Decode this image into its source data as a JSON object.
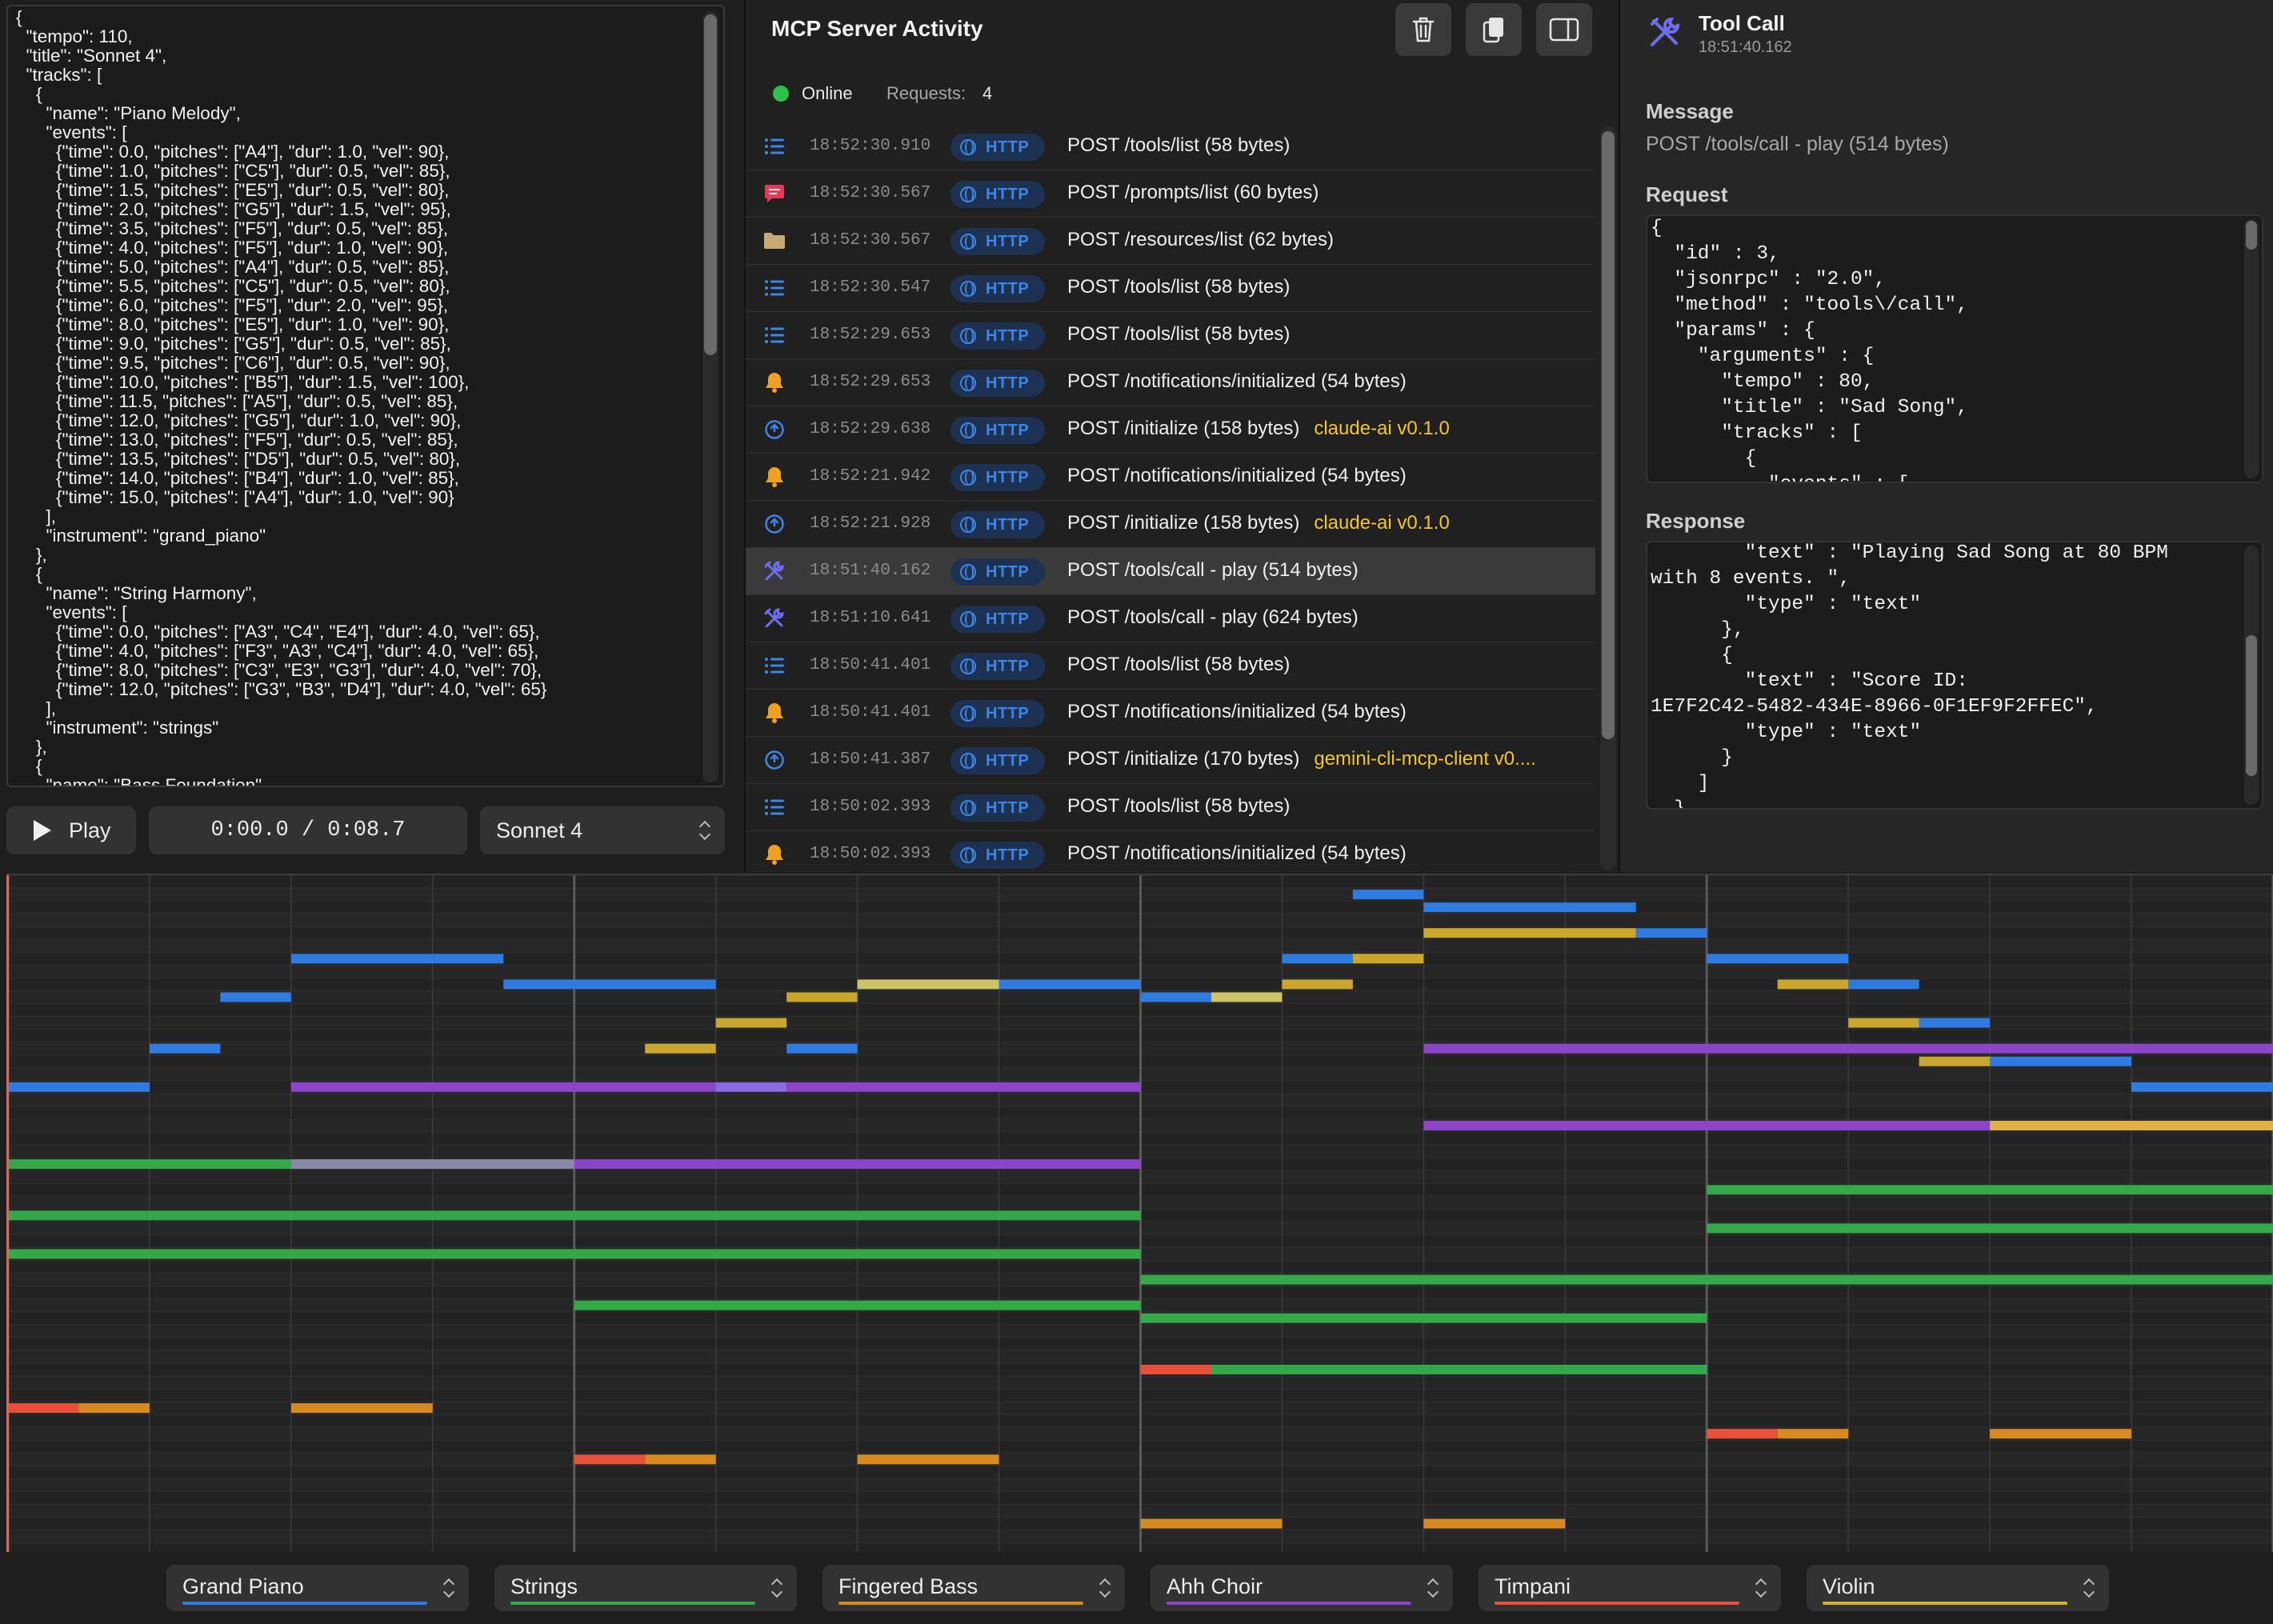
{
  "editor": {
    "json_text": "{\n  \"tempo\": 110,\n  \"title\": \"Sonnet 4\",\n  \"tracks\": [\n    {\n      \"name\": \"Piano Melody\",\n      \"events\": [\n        {\"time\": 0.0, \"pitches\": [\"A4\"], \"dur\": 1.0, \"vel\": 90},\n        {\"time\": 1.0, \"pitches\": [\"C5\"], \"dur\": 0.5, \"vel\": 85},\n        {\"time\": 1.5, \"pitches\": [\"E5\"], \"dur\": 0.5, \"vel\": 80},\n        {\"time\": 2.0, \"pitches\": [\"G5\"], \"dur\": 1.5, \"vel\": 95},\n        {\"time\": 3.5, \"pitches\": [\"F5\"], \"dur\": 0.5, \"vel\": 85},\n        {\"time\": 4.0, \"pitches\": [\"F5\"], \"dur\": 1.0, \"vel\": 90},\n        {\"time\": 5.0, \"pitches\": [\"A4\"], \"dur\": 0.5, \"vel\": 85},\n        {\"time\": 5.5, \"pitches\": [\"C5\"], \"dur\": 0.5, \"vel\": 80},\n        {\"time\": 6.0, \"pitches\": [\"F5\"], \"dur\": 2.0, \"vel\": 95},\n        {\"time\": 8.0, \"pitches\": [\"E5\"], \"dur\": 1.0, \"vel\": 90},\n        {\"time\": 9.0, \"pitches\": [\"G5\"], \"dur\": 0.5, \"vel\": 85},\n        {\"time\": 9.5, \"pitches\": [\"C6\"], \"dur\": 0.5, \"vel\": 90},\n        {\"time\": 10.0, \"pitches\": [\"B5\"], \"dur\": 1.5, \"vel\": 100},\n        {\"time\": 11.5, \"pitches\": [\"A5\"], \"dur\": 0.5, \"vel\": 85},\n        {\"time\": 12.0, \"pitches\": [\"G5\"], \"dur\": 1.0, \"vel\": 90},\n        {\"time\": 13.0, \"pitches\": [\"F5\"], \"dur\": 0.5, \"vel\": 85},\n        {\"time\": 13.5, \"pitches\": [\"D5\"], \"dur\": 0.5, \"vel\": 80},\n        {\"time\": 14.0, \"pitches\": [\"B4\"], \"dur\": 1.0, \"vel\": 85},\n        {\"time\": 15.0, \"pitches\": [\"A4\"], \"dur\": 1.0, \"vel\": 90}\n      ],\n      \"instrument\": \"grand_piano\"\n    },\n    {\n      \"name\": \"String Harmony\",\n      \"events\": [\n        {\"time\": 0.0, \"pitches\": [\"A3\", \"C4\", \"E4\"], \"dur\": 4.0, \"vel\": 65},\n        {\"time\": 4.0, \"pitches\": [\"F3\", \"A3\", \"C4\"], \"dur\": 4.0, \"vel\": 65},\n        {\"time\": 8.0, \"pitches\": [\"C3\", \"E3\", \"G3\"], \"dur\": 4.0, \"vel\": 70},\n        {\"time\": 12.0, \"pitches\": [\"G3\", \"B3\", \"D4\"], \"dur\": 4.0, \"vel\": 65}\n      ],\n      \"instrument\": \"strings\"\n    },\n    {\n      \"name\": \"Bass Foundation\","
  },
  "transport": {
    "play_label": "Play",
    "time": "0:00.0 / 0:08.7",
    "song": "Sonnet 4"
  },
  "activity": {
    "title": "MCP Server Activity",
    "status": "Online",
    "requests_label": "Requests:",
    "requests_count": "4",
    "protocol_label": "HTTP",
    "rows": [
      {
        "icon": "list-icon",
        "time": "18:52:30.910",
        "text": "POST /tools/list (58 bytes)",
        "client": ""
      },
      {
        "icon": "chat-bubble-icon",
        "time": "18:52:30.567",
        "text": "POST /prompts/list (60 bytes)",
        "client": ""
      },
      {
        "icon": "folder-icon",
        "time": "18:52:30.567",
        "text": "POST /resources/list (62 bytes)",
        "client": ""
      },
      {
        "icon": "list-icon",
        "time": "18:52:30.547",
        "text": "POST /tools/list (58 bytes)",
        "client": ""
      },
      {
        "icon": "list-icon",
        "time": "18:52:29.653",
        "text": "POST /tools/list (58 bytes)",
        "client": ""
      },
      {
        "icon": "bell-icon",
        "time": "18:52:29.653",
        "text": "POST /notifications/initialized (54 bytes)",
        "client": ""
      },
      {
        "icon": "power-icon",
        "time": "18:52:29.638",
        "text": "POST /initialize (158 bytes)",
        "client": "claude-ai v0.1.0"
      },
      {
        "icon": "bell-icon",
        "time": "18:52:21.942",
        "text": "POST /notifications/initialized (54 bytes)",
        "client": ""
      },
      {
        "icon": "power-icon",
        "time": "18:52:21.928",
        "text": "POST /initialize (158 bytes)",
        "client": "claude-ai v0.1.0"
      },
      {
        "icon": "tools-icon",
        "time": "18:51:40.162",
        "text": "POST /tools/call - play (514 bytes)",
        "client": "",
        "selected": true
      },
      {
        "icon": "tools-icon",
        "time": "18:51:10.641",
        "text": "POST /tools/call - play (624 bytes)",
        "client": ""
      },
      {
        "icon": "list-icon",
        "time": "18:50:41.401",
        "text": "POST /tools/list (58 bytes)",
        "client": ""
      },
      {
        "icon": "bell-icon",
        "time": "18:50:41.401",
        "text": "POST /notifications/initialized (54 bytes)",
        "client": ""
      },
      {
        "icon": "power-icon",
        "time": "18:50:41.387",
        "text": "POST /initialize (170 bytes)",
        "client": "gemini-cli-mcp-client v0...."
      },
      {
        "icon": "list-icon",
        "time": "18:50:02.393",
        "text": "POST /tools/list (58 bytes)",
        "client": ""
      },
      {
        "icon": "bell-icon",
        "time": "18:50:02.393",
        "text": "POST /notifications/initialized (54 bytes)",
        "client": ""
      }
    ]
  },
  "detail": {
    "title": "Tool Call",
    "time": "18:51:40.162",
    "message_label": "Message",
    "message": "POST /tools/call - play (514 bytes)",
    "request_label": "Request",
    "request_json": "{\n  \"id\" : 3,\n  \"jsonrpc\" : \"2.0\",\n  \"method\" : \"tools\\/call\",\n  \"params\" : {\n    \"arguments\" : {\n      \"tempo\" : 80,\n      \"title\" : \"Sad Song\",\n      \"tracks\" : [\n        {\n          \"events\" : [",
    "response_label": "Response",
    "response_json": "        \"text\" : \"Playing Sad Song at 80 BPM\nwith 8 events. \",\n        \"type\" : \"text\"\n      },\n      {\n        \"text\" : \"Score ID:\n1E7F2C42-5482-434E-8966-0F1EF9F2FFEC\",\n        \"type\" : \"text\"\n      }\n    ]\n  }"
  },
  "colors": {
    "grand_piano": "#2f7be0",
    "strings": "#35a84a",
    "fingered_bass": "#d68a20",
    "ahh_choir": "#8c44c8",
    "timpani": "#e8503a",
    "violin": "#d6b12a",
    "bg": "#1e1e1e",
    "accent": "#3d86e6"
  },
  "roll": {
    "measure_count": 16,
    "beats_per_measure": 4,
    "notes": [
      {
        "t": 0.0,
        "d": 1.0,
        "r": 16,
        "c": "#2f7be0"
      },
      {
        "t": 1.0,
        "d": 0.5,
        "r": 13,
        "c": "#2f7be0"
      },
      {
        "t": 1.5,
        "d": 0.5,
        "r": 9,
        "c": "#2f7be0"
      },
      {
        "t": 2.0,
        "d": 1.5,
        "r": 6,
        "c": "#2f7be0"
      },
      {
        "t": 3.5,
        "d": 1.5,
        "r": 8,
        "c": "#2f7be0"
      },
      {
        "t": 5.5,
        "d": 0.5,
        "r": 13,
        "c": "#2f7be0"
      },
      {
        "t": 7.0,
        "d": 1.0,
        "r": 8,
        "c": "#2f7be0"
      },
      {
        "t": 8.0,
        "d": 0.5,
        "r": 9,
        "c": "#2f7be0"
      },
      {
        "t": 9.0,
        "d": 0.5,
        "r": 6,
        "c": "#2f7be0"
      },
      {
        "t": 9.5,
        "d": 0.5,
        "r": 1,
        "c": "#2f7be0"
      },
      {
        "t": 10.0,
        "d": 1.5,
        "r": 2,
        "c": "#2f7be0"
      },
      {
        "t": 11.5,
        "d": 0.5,
        "r": 4,
        "c": "#2f7be0"
      },
      {
        "t": 12.0,
        "d": 1.0,
        "r": 6,
        "c": "#2f7be0"
      },
      {
        "t": 13.0,
        "d": 0.5,
        "r": 8,
        "c": "#2f7be0"
      },
      {
        "t": 13.5,
        "d": 0.5,
        "r": 11,
        "c": "#2f7be0"
      },
      {
        "t": 14.0,
        "d": 1.0,
        "r": 14,
        "c": "#2f7be0"
      },
      {
        "t": 15.0,
        "d": 1.0,
        "r": 16,
        "c": "#2f7be0"
      },
      {
        "t": 4.5,
        "d": 0.5,
        "r": 13,
        "c": "#c9a72c"
      },
      {
        "t": 5.0,
        "d": 0.5,
        "r": 11,
        "c": "#c9a72c"
      },
      {
        "t": 5.5,
        "d": 0.5,
        "r": 9,
        "c": "#c9a72c"
      },
      {
        "t": 6.0,
        "d": 1.0,
        "r": 8,
        "c": "#cfc36a"
      },
      {
        "t": 8.5,
        "d": 0.5,
        "r": 9,
        "c": "#cfc36a"
      },
      {
        "t": 9.0,
        "d": 0.5,
        "r": 8,
        "c": "#c9a72c"
      },
      {
        "t": 9.5,
        "d": 0.5,
        "r": 6,
        "c": "#c9a72c"
      },
      {
        "t": 10.0,
        "d": 1.5,
        "r": 4,
        "c": "#c9a72c"
      },
      {
        "t": 12.5,
        "d": 0.5,
        "r": 8,
        "c": "#c9a72c"
      },
      {
        "t": 13.0,
        "d": 0.5,
        "r": 11,
        "c": "#c9a72c"
      },
      {
        "t": 13.5,
        "d": 0.5,
        "r": 14,
        "c": "#c9a72c"
      },
      {
        "t": 14.0,
        "d": 2.0,
        "r": 19,
        "c": "#e0b040"
      },
      {
        "t": 2.0,
        "d": 3.0,
        "r": 16,
        "c": "#8c44c8"
      },
      {
        "t": 5.0,
        "d": 0.5,
        "r": 16,
        "c": "#8a6ae6"
      },
      {
        "t": 5.5,
        "d": 2.5,
        "r": 16,
        "c": "#8c44c8"
      },
      {
        "t": 4.0,
        "d": 4.0,
        "r": 22,
        "c": "#8c44c8"
      },
      {
        "t": 10.0,
        "d": 6.0,
        "r": 13,
        "c": "#8c44c8"
      },
      {
        "t": 10.0,
        "d": 4.0,
        "r": 19,
        "c": "#8c44c8"
      },
      {
        "t": 0.0,
        "d": 2.0,
        "r": 22,
        "c": "#35a84a"
      },
      {
        "t": 2.0,
        "d": 2.0,
        "r": 22,
        "c": "#8a8aa8"
      },
      {
        "t": 0.0,
        "d": 8.0,
        "r": 26,
        "c": "#35a84a"
      },
      {
        "t": 0.0,
        "d": 8.0,
        "r": 29,
        "c": "#35a84a"
      },
      {
        "t": 4.0,
        "d": 4.0,
        "r": 33,
        "c": "#35a84a"
      },
      {
        "t": 8.0,
        "d": 8.0,
        "r": 31,
        "c": "#35a84a"
      },
      {
        "t": 8.0,
        "d": 4.0,
        "r": 34,
        "c": "#35a84a"
      },
      {
        "t": 8.5,
        "d": 3.5,
        "r": 38,
        "c": "#35a84a"
      },
      {
        "t": 12.0,
        "d": 4.0,
        "r": 24,
        "c": "#35a84a"
      },
      {
        "t": 12.0,
        "d": 4.0,
        "r": 27,
        "c": "#35a84a"
      },
      {
        "t": 0.0,
        "d": 0.5,
        "r": 41,
        "c": "#e8503a"
      },
      {
        "t": 4.0,
        "d": 0.5,
        "r": 45,
        "c": "#e8503a"
      },
      {
        "t": 8.0,
        "d": 0.5,
        "r": 38,
        "c": "#e8503a"
      },
      {
        "t": 12.0,
        "d": 0.5,
        "r": 43,
        "c": "#e8503a"
      },
      {
        "t": 0.5,
        "d": 0.5,
        "r": 41,
        "c": "#d68a20"
      },
      {
        "t": 2.0,
        "d": 1.0,
        "r": 41,
        "c": "#d68a20"
      },
      {
        "t": 4.5,
        "d": 0.5,
        "r": 45,
        "c": "#d68a20"
      },
      {
        "t": 6.0,
        "d": 1.0,
        "r": 45,
        "c": "#d68a20"
      },
      {
        "t": 8.0,
        "d": 1.0,
        "r": 50,
        "c": "#d68a20"
      },
      {
        "t": 10.0,
        "d": 1.0,
        "r": 50,
        "c": "#d68a20"
      },
      {
        "t": 12.5,
        "d": 0.5,
        "r": 43,
        "c": "#d68a20"
      },
      {
        "t": 14.0,
        "d": 1.0,
        "r": 43,
        "c": "#d68a20"
      }
    ]
  },
  "instruments": [
    {
      "label": "Grand Piano",
      "color": "#2f7be0"
    },
    {
      "label": "Strings",
      "color": "#35a84a"
    },
    {
      "label": "Fingered Bass",
      "color": "#d68a20"
    },
    {
      "label": "Ahh Choir",
      "color": "#8c44c8"
    },
    {
      "label": "Timpani",
      "color": "#e8503a"
    },
    {
      "label": "Violin",
      "color": "#d6b12a"
    }
  ]
}
